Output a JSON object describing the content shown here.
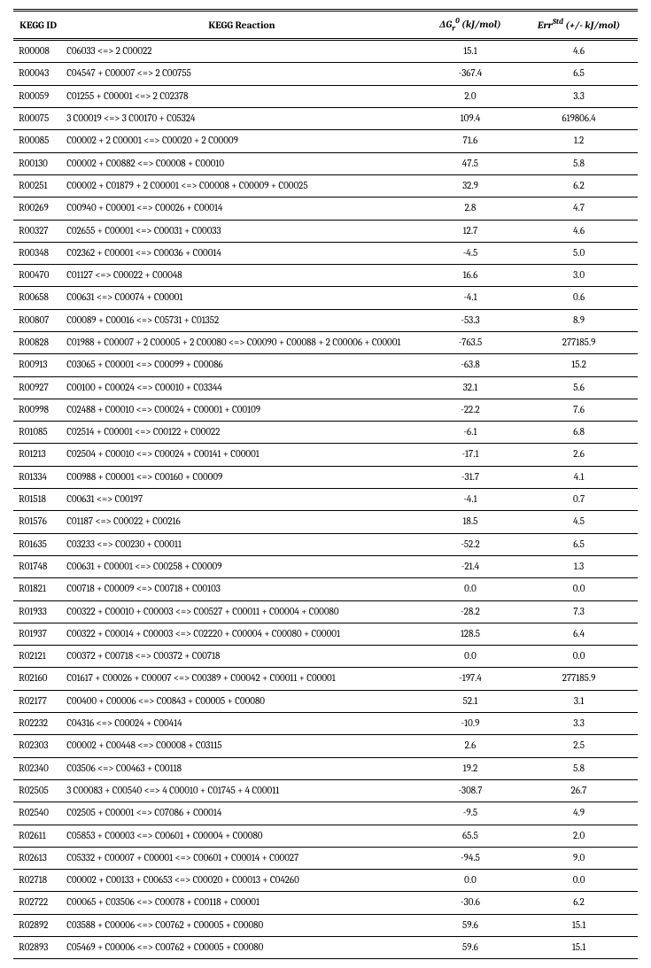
{
  "table": {
    "headers": {
      "kegg_id": "KEGG ID",
      "reaction": "KEGG Reaction",
      "dg_prefix": "ΔG",
      "dg_sub": "r",
      "dg_sup": "0",
      "dg_suffix": " (kJ/mol)",
      "err_prefix": "Err",
      "err_sup": "Std",
      "err_suffix": " (+/- kJ/mol)"
    },
    "rows": [
      {
        "id": "R00008",
        "rxn": "C06033 <=> 2 C00022",
        "dg": "15.1",
        "err": "4.6"
      },
      {
        "id": "R00043",
        "rxn": "C04547 + C00007 <=> 2 C00755",
        "dg": "-367.4",
        "err": "6.5"
      },
      {
        "id": "R00059",
        "rxn": "C01255 + C00001 <=> 2 C02378",
        "dg": "2.0",
        "err": "3.3"
      },
      {
        "id": "R00075",
        "rxn": "3 C00019 <=> 3 C00170 + C05324",
        "dg": "109.4",
        "err": "619806.4"
      },
      {
        "id": "R00085",
        "rxn": "C00002 + 2 C00001 <=> C00020 + 2 C00009",
        "dg": "71.6",
        "err": "1.2"
      },
      {
        "id": "R00130",
        "rxn": "C00002 + C00882 <=> C00008 + C00010",
        "dg": "47.5",
        "err": "5.8"
      },
      {
        "id": "R00251",
        "rxn": "C00002 + C01879 + 2 C00001 <=> C00008 + C00009 + C00025",
        "dg": "32.9",
        "err": "6.2"
      },
      {
        "id": "R00269",
        "rxn": "C00940 + C00001 <=> C00026 + C00014",
        "dg": "2.8",
        "err": "4.7"
      },
      {
        "id": "R00327",
        "rxn": "C02655 + C00001 <=> C00031 + C00033",
        "dg": "12.7",
        "err": "4.6"
      },
      {
        "id": "R00348",
        "rxn": "C02362 + C00001 <=> C00036 + C00014",
        "dg": "-4.5",
        "err": "5.0"
      },
      {
        "id": "R00470",
        "rxn": "C01127 <=> C00022 + C00048",
        "dg": "16.6",
        "err": "3.0"
      },
      {
        "id": "R00658",
        "rxn": "C00631 <=> C00074 + C00001",
        "dg": "-4.1",
        "err": "0.6"
      },
      {
        "id": "R00807",
        "rxn": "C00089 + C00016 <=> C05731 + C01352",
        "dg": "-53.3",
        "err": "8.9"
      },
      {
        "id": "R00828",
        "rxn": "C01988 + C00007 + 2 C00005 + 2 C00080 <=> C00090 + C00088 + 2 C00006 + C00001",
        "dg": "-763.5",
        "err": "277185.9"
      },
      {
        "id": "R00913",
        "rxn": "C03065 + C00001 <=> C00099 + C00086",
        "dg": "-63.8",
        "err": "15.2"
      },
      {
        "id": "R00927",
        "rxn": "C00100 + C00024 <=> C00010 + C03344",
        "dg": "32.1",
        "err": "5.6"
      },
      {
        "id": "R00998",
        "rxn": "C02488 + C00010 <=> C00024 + C00001 + C00109",
        "dg": "-22.2",
        "err": "7.6"
      },
      {
        "id": "R01085",
        "rxn": "C02514 + C00001 <=> C00122 + C00022",
        "dg": "-6.1",
        "err": "6.8"
      },
      {
        "id": "R01213",
        "rxn": "C02504 + C00010 <=> C00024 + C00141 + C00001",
        "dg": "-17.1",
        "err": "2.6"
      },
      {
        "id": "R01334",
        "rxn": "C00988 + C00001 <=> C00160 + C00009",
        "dg": "-31.7",
        "err": "4.1"
      },
      {
        "id": "R01518",
        "rxn": "C00631 <=> C00197",
        "dg": "-4.1",
        "err": "0.7"
      },
      {
        "id": "R01576",
        "rxn": "C01187 <=> C00022 + C00216",
        "dg": "18.5",
        "err": "4.5"
      },
      {
        "id": "R01635",
        "rxn": "C03233 <=> C00230 + C00011",
        "dg": "-52.2",
        "err": "6.5"
      },
      {
        "id": "R01748",
        "rxn": "C00631 + C00001 <=> C00258 + C00009",
        "dg": "-21.4",
        "err": "1.3"
      },
      {
        "id": "R01821",
        "rxn": "C00718 + C00009 <=> C00718 + C00103",
        "dg": "0.0",
        "err": "0.0"
      },
      {
        "id": "R01933",
        "rxn": "C00322 + C00010 + C00003 <=> C00527 + C00011 + C00004 + C00080",
        "dg": "-28.2",
        "err": "7.3"
      },
      {
        "id": "R01937",
        "rxn": "C00322 + C00014 + C00003 <=> C02220 + C00004 + C00080 + C00001",
        "dg": "128.5",
        "err": "6.4"
      },
      {
        "id": "R02121",
        "rxn": "C00372 + C00718 <=> C00372 + C00718",
        "dg": "0.0",
        "err": "0.0"
      },
      {
        "id": "R02160",
        "rxn": "C01617 + C00026 + C00007 <=> C00389 + C00042 + C00011 + C00001",
        "dg": "-197.4",
        "err": "277185.9"
      },
      {
        "id": "R02177",
        "rxn": "C00400 + C00006 <=> C00843 + C00005 + C00080",
        "dg": "52.1",
        "err": "3.1"
      },
      {
        "id": "R02232",
        "rxn": "C04316 <=> C00024 + C00414",
        "dg": "-10.9",
        "err": "3.3"
      },
      {
        "id": "R02303",
        "rxn": "C00002 + C00448 <=> C00008 + C03115",
        "dg": "2.6",
        "err": "2.5"
      },
      {
        "id": "R02340",
        "rxn": "C03506 <=> C00463 + C00118",
        "dg": "19.2",
        "err": "5.8"
      },
      {
        "id": "R02505",
        "rxn": "3 C00083 + C00540 <=> 4 C00010 + C01745 + 4 C00011",
        "dg": "-308.7",
        "err": "26.7"
      },
      {
        "id": "R02540",
        "rxn": "C02505 + C00001 <=> C07086 + C00014",
        "dg": "-9.5",
        "err": "4.9"
      },
      {
        "id": "R02611",
        "rxn": "C05853 + C00003 <=> C00601 + C00004 + C00080",
        "dg": "65.5",
        "err": "2.0"
      },
      {
        "id": "R02613",
        "rxn": "C05332 + C00007 + C00001 <=> C00601 + C00014 + C00027",
        "dg": "-94.5",
        "err": "9.0"
      },
      {
        "id": "R02718",
        "rxn": "C00002 + C00133 + C00653 <=> C00020 + C00013 + C04260",
        "dg": "0.0",
        "err": "0.0"
      },
      {
        "id": "R02722",
        "rxn": "C00065 + C03506 <=> C00078 + C00118 + C00001",
        "dg": "-30.6",
        "err": "6.2"
      },
      {
        "id": "R02892",
        "rxn": "C03588 + C00006 <=> C00762 + C00005 + C00080",
        "dg": "59.6",
        "err": "15.1"
      },
      {
        "id": "R02893",
        "rxn": "C05469 + C00006 <=> C00762 + C00005 + C00080",
        "dg": "59.6",
        "err": "15.1"
      }
    ]
  }
}
